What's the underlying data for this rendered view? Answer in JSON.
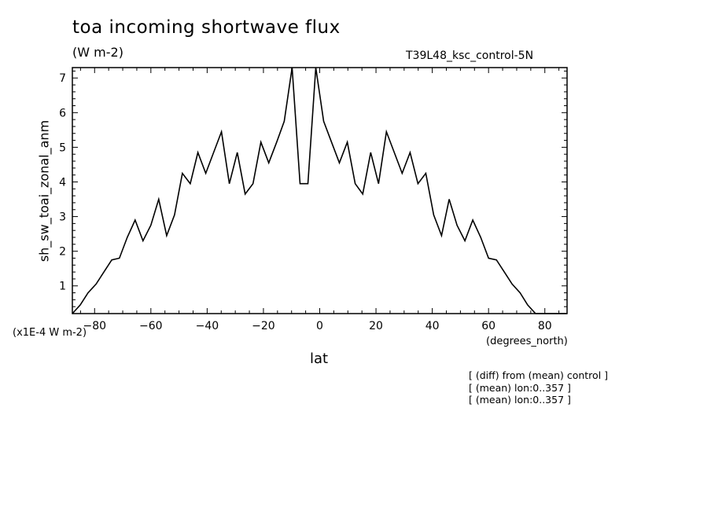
{
  "chart_data": {
    "type": "line",
    "title": "toa incoming shortwave flux",
    "subtitle": "(W m-2)",
    "run_label": "T39L48_ksc_control-5N",
    "xlabel": "lat",
    "x_units": "(degrees_north)",
    "ylabel": "sh_sw_toai_zonal_anm",
    "y_scale_note": "(x1E-4 W m-2)",
    "xlim": [
      -87.9,
      87.9
    ],
    "ylim": [
      0.2,
      7.3
    ],
    "x_ticks": [
      -80,
      -60,
      -40,
      -20,
      0,
      20,
      40,
      60,
      80
    ],
    "y_ticks": [
      1,
      2,
      3,
      4,
      5,
      6,
      7
    ],
    "grid": false,
    "series": [
      {
        "x": [
          -87.9,
          -85.1,
          -82.3,
          -79.5,
          -76.7,
          -73.9,
          -71.2,
          -68.4,
          -65.6,
          -62.8,
          -60.0,
          -57.2,
          -54.4,
          -51.6,
          -48.8,
          -46.0,
          -43.3,
          -40.5,
          -37.7,
          -34.9,
          -32.1,
          -29.3,
          -26.5,
          -23.7,
          -20.9,
          -18.1,
          -15.3,
          -12.6,
          -9.8,
          -7.0,
          -4.2,
          -1.4,
          1.4,
          4.2,
          7.0,
          9.8,
          12.6,
          15.3,
          18.1,
          20.9,
          23.7,
          26.5,
          29.3,
          32.1,
          34.9,
          37.7,
          40.5,
          43.3,
          46.0,
          48.8,
          51.6,
          54.4,
          57.2,
          60.0,
          62.8,
          65.6,
          68.4,
          71.2,
          73.9,
          76.7,
          79.5,
          82.3,
          85.1,
          87.9
        ],
        "y": [
          0.2,
          0.45,
          0.8,
          1.05,
          1.4,
          1.75,
          1.8,
          2.4,
          2.9,
          2.3,
          2.75,
          3.5,
          2.45,
          3.05,
          4.25,
          3.95,
          4.85,
          4.25,
          4.85,
          5.45,
          3.95,
          4.85,
          3.65,
          3.95,
          5.15,
          4.55,
          5.15,
          5.75,
          7.3,
          3.95,
          3.95,
          7.3,
          5.75,
          5.15,
          4.55,
          5.15,
          3.95,
          3.65,
          4.85,
          3.95,
          5.45,
          4.85,
          4.25,
          4.85,
          3.95,
          4.25,
          3.05,
          2.45,
          3.5,
          2.75,
          2.3,
          2.9,
          2.4,
          1.8,
          1.75,
          1.4,
          1.05,
          0.8,
          0.45,
          0.2,
          0.2,
          0.2,
          0.2,
          0.2
        ]
      }
    ]
  },
  "notes": [
    "[ (diff) from (mean) control ]",
    "[ (mean) lon:0..357 ]",
    "[ (mean) lon:0..357 ]"
  ]
}
